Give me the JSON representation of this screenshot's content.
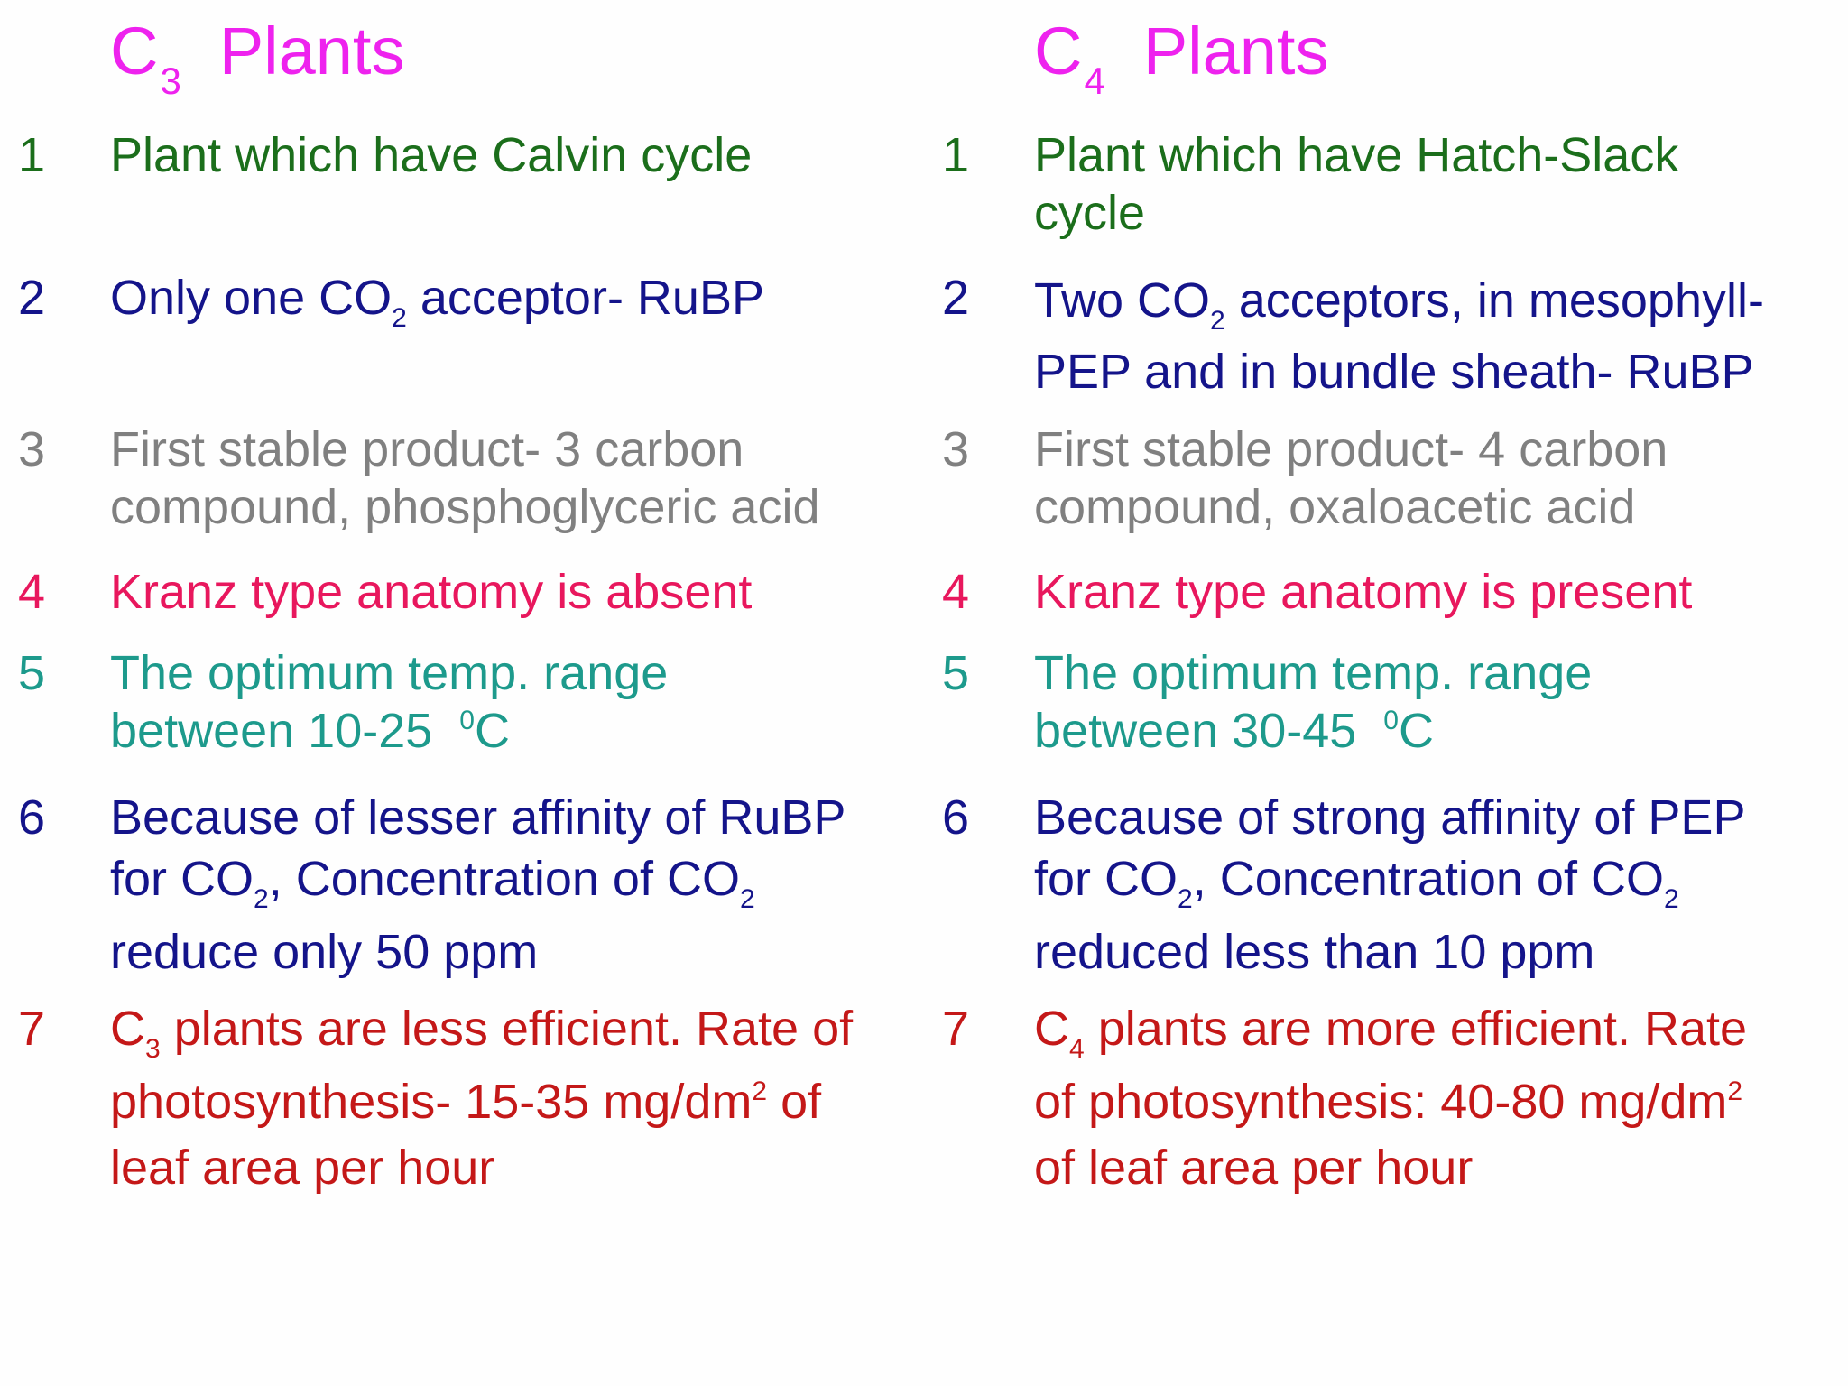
{
  "colors": {
    "heading": "#ee22ee",
    "row1": "#1b6e1b",
    "row2": "#14148a",
    "row3": "#808080",
    "row4": "#e8175d",
    "row5": "#1d9a8c",
    "row6": "#14148a",
    "row7": "#c41818"
  },
  "left": {
    "heading": {
      "c": "C",
      "sub": "3",
      "word": "Plants"
    },
    "rows": [
      {
        "num": "1",
        "line1": "Plant which have Calvin cycle"
      },
      {
        "num": "2",
        "a": "Only one CO",
        "sub": "2",
        "b": " acceptor- RuBP"
      },
      {
        "num": "3",
        "line1": "First stable product- 3 carbon",
        "line2": "compound, phosphoglyceric acid"
      },
      {
        "num": "4",
        "line1": "Kranz type anatomy is absent"
      },
      {
        "num": "5",
        "line1": "The optimum temp. range",
        "line2a": "between 10-25  ",
        "sup": "0",
        "line2b": "C"
      },
      {
        "num": "6",
        "line1": "Because of lesser affinity of RuBP",
        "l2a": "for CO",
        "l2sub": "2",
        "l2b": ", Concentration of CO",
        "l2sub2": "2",
        "line3": "reduce only 50 ppm"
      },
      {
        "num": "7",
        "l1a": "C",
        "l1sub": "3",
        "l1b": " plants are less efficient. Rate of",
        "l2a": "photosynthesis- 15-35 mg/dm",
        "l2sup": "2",
        "l2b": " of",
        "line3": "leaf area per hour"
      }
    ]
  },
  "right": {
    "heading": {
      "c": "C",
      "sub": "4",
      "word": "Plants"
    },
    "rows": [
      {
        "num": "1",
        "line1": "Plant which have Hatch-Slack",
        "line2": "cycle"
      },
      {
        "num": "2",
        "a": "Two CO",
        "sub": "2",
        "b": " acceptors, in mesophyll-",
        "line2": "PEP and in bundle sheath- RuBP"
      },
      {
        "num": "3",
        "line1": "First stable product- 4 carbon",
        "line2": "compound, oxaloacetic acid"
      },
      {
        "num": "4",
        "line1": "Kranz type anatomy is present"
      },
      {
        "num": "5",
        "line1": "The optimum temp. range",
        "line2a": "between 30-45  ",
        "sup": "0",
        "line2b": "C"
      },
      {
        "num": "6",
        "line1": "Because of strong affinity of PEP",
        "l2a": "for CO",
        "l2sub": "2",
        "l2b": ", Concentration of CO",
        "l2sub2": "2",
        "line3": "reduced less than 10 ppm"
      },
      {
        "num": "7",
        "l1a": "C",
        "l1sub": "4",
        "l1b": " plants are more efficient. Rate",
        "l2a": "of photosynthesis: 40-80 mg/dm",
        "l2sup": "2",
        "line3": "of leaf area per hour"
      }
    ]
  }
}
